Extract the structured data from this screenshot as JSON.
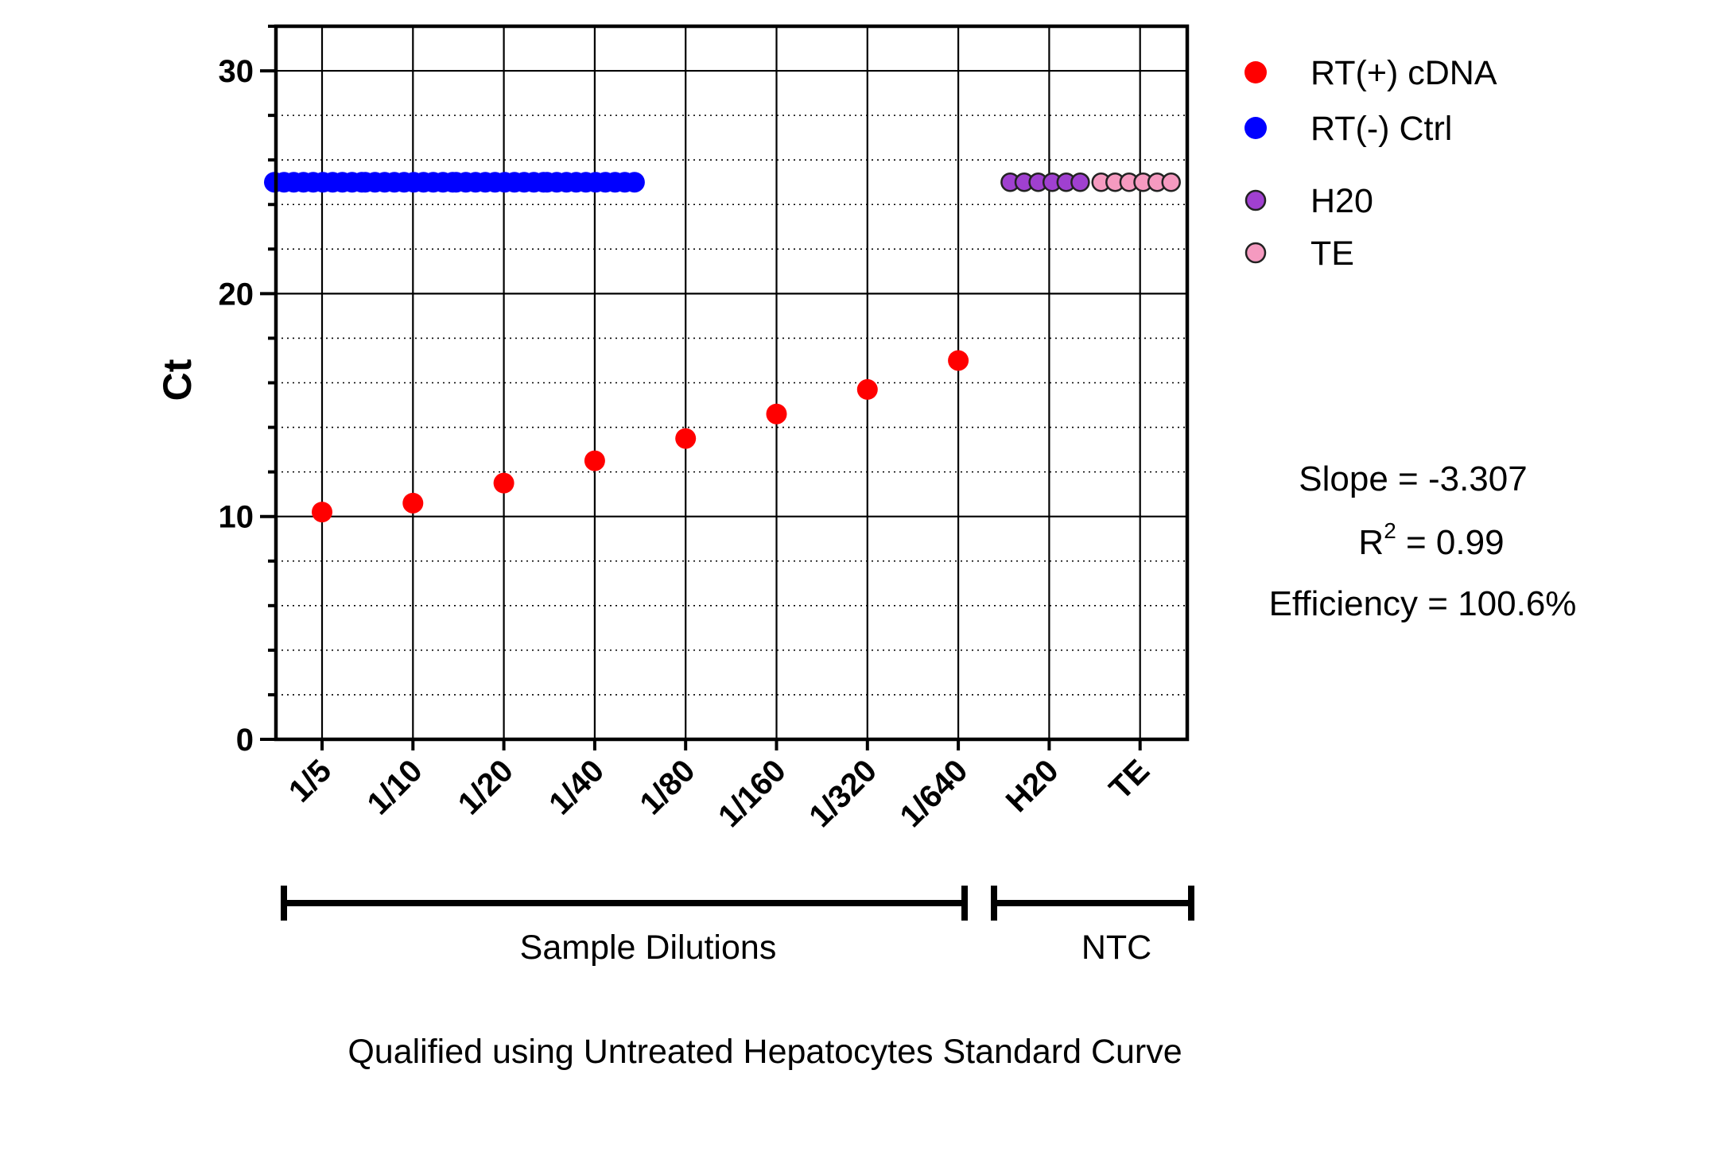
{
  "chart_data": {
    "type": "scatter",
    "ylabel": "Ct",
    "ylim": [
      0,
      32
    ],
    "yticks": [
      0,
      10,
      20,
      30
    ],
    "grid": true,
    "categories": [
      "1/5",
      "1/10",
      "1/20",
      "1/40",
      "1/80",
      "1/160",
      "1/320",
      "1/640",
      "H20",
      "TE"
    ],
    "series": [
      {
        "name": "RT(+) cDNA",
        "color": "#ff0000",
        "marker": "filled-circle",
        "points": [
          {
            "x": "1/5",
            "y": 10.2
          },
          {
            "x": "1/10",
            "y": 10.6
          },
          {
            "x": "1/20",
            "y": 11.5
          },
          {
            "x": "1/40",
            "y": 12.5
          },
          {
            "x": "1/80",
            "y": 13.5
          },
          {
            "x": "1/160",
            "y": 14.6
          },
          {
            "x": "1/320",
            "y": 15.7
          },
          {
            "x": "1/640",
            "y": 17.0
          }
        ]
      },
      {
        "name": "RT(-) Ctrl",
        "color": "#0000ff",
        "marker": "filled-circle",
        "y": 25,
        "categories": [
          "1/5",
          "1/10",
          "1/20",
          "1/40"
        ],
        "replicates_per_category": 10
      },
      {
        "name": "H20",
        "color": "#a040d0",
        "marker": "outlined-circle",
        "y": 25,
        "categories": [
          "H20"
        ],
        "replicates_per_category": 6
      },
      {
        "name": "TE",
        "color": "#f59ac0",
        "marker": "outlined-circle",
        "y": 25,
        "categories": [
          "TE"
        ],
        "replicates_per_category": 6
      }
    ],
    "legend_position": "top-right",
    "brackets": [
      {
        "label": "Sample Dilutions",
        "from": "1/5",
        "to": "1/640"
      },
      {
        "label": "NTC",
        "from": "H20",
        "to": "TE"
      }
    ],
    "annotations": {
      "slope": "Slope = -3.307",
      "r2_prefix": "R",
      "r2_sup": "2",
      "r2_value": " = 0.99",
      "efficiency": "Efficiency = 100.6%"
    },
    "caption": "Qualified using Untreated Hepatocytes Standard Curve"
  }
}
